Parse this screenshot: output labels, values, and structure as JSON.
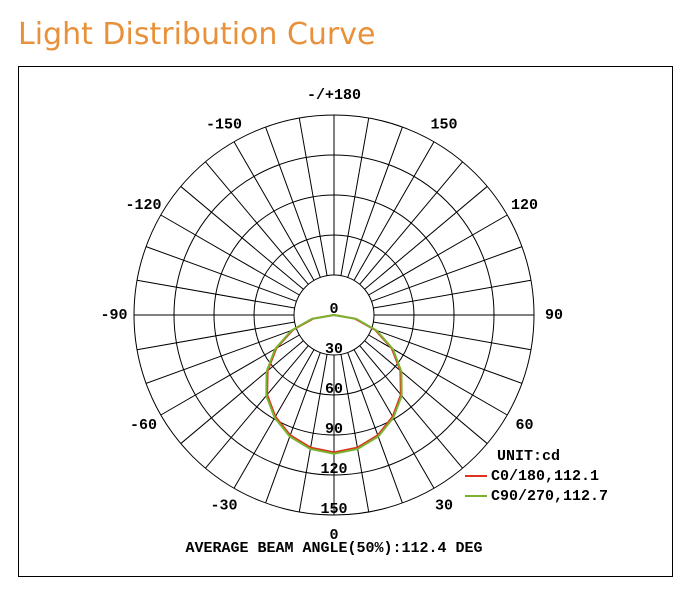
{
  "chart_data": {
    "type": "polar",
    "title": "Light Distribution Curve",
    "unit_label": "UNIT:cd",
    "footer": "AVERAGE BEAM ANGLE(50%):112.4 DEG",
    "x": [
      -90,
      -80,
      -70,
      -60,
      -50,
      -40,
      -30,
      -20,
      -10,
      0,
      10,
      20,
      30,
      40,
      50,
      60,
      70,
      80,
      90
    ],
    "series": [
      {
        "name": "C0/180,112.1",
        "color": "#e0301e",
        "values": [
          0,
          16,
          33,
          50,
          65,
          78,
          88,
          96,
          101,
          103,
          101,
          96,
          88,
          78,
          65,
          50,
          33,
          16,
          0
        ]
      },
      {
        "name": "C90/270,112.7",
        "color": "#7ab32e",
        "values": [
          0,
          17,
          34,
          51,
          66,
          79,
          89,
          97,
          102,
          104,
          102,
          97,
          89,
          79,
          66,
          51,
          34,
          17,
          0
        ]
      }
    ],
    "rlim": [
      0,
      150
    ],
    "rticks": [
      0,
      30,
      60,
      90,
      120,
      150
    ],
    "angle_ticks": [
      0,
      30,
      60,
      90,
      120,
      150,
      {
        "value": 180,
        "label": "-/+180"
      },
      -150,
      -120,
      -90,
      -60,
      -30
    ],
    "angle_grid": [
      -170,
      -160,
      -150,
      -140,
      -130,
      -120,
      -110,
      -100,
      -90,
      -80,
      -70,
      -60,
      -50,
      -40,
      -30,
      -20,
      -10,
      0,
      10,
      20,
      30,
      40,
      50,
      60,
      70,
      80,
      90,
      100,
      110,
      120,
      130,
      140,
      150,
      160,
      170,
      180
    ],
    "grid": true
  }
}
